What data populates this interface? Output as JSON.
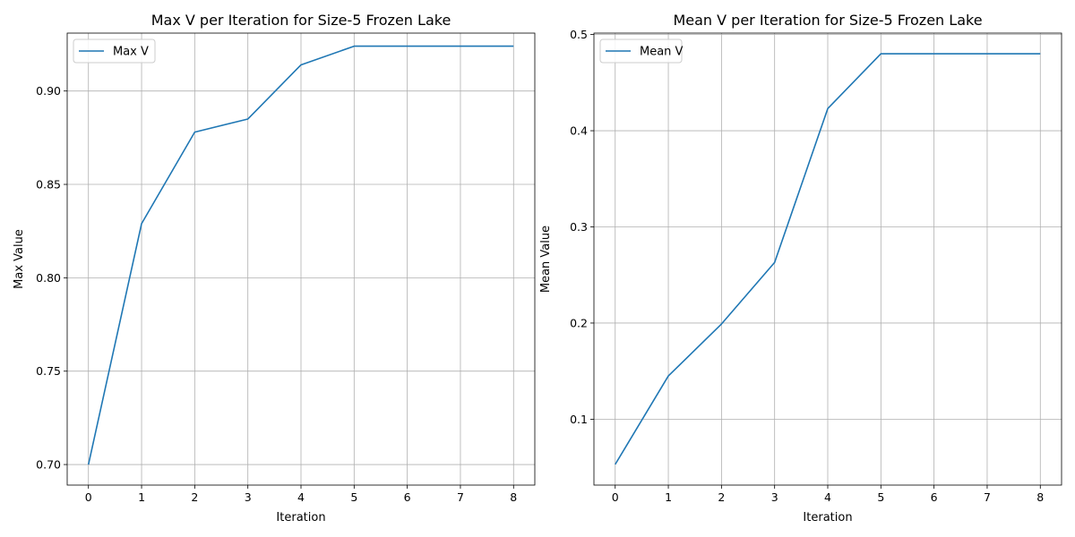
{
  "chart_data": [
    {
      "type": "line",
      "title": "Max V per Iteration for Size-5 Frozen Lake",
      "xlabel": "Iteration",
      "ylabel": "Max Value",
      "x": [
        0,
        1,
        2,
        3,
        4,
        5,
        6,
        7,
        8
      ],
      "series": [
        {
          "name": "Max V",
          "values": [
            0.7,
            0.829,
            0.878,
            0.885,
            0.914,
            0.924,
            0.924,
            0.924,
            0.924
          ]
        }
      ],
      "xlim": [
        -0.4,
        8.4
      ],
      "ylim": [
        0.689,
        0.931
      ],
      "xticks": [
        0,
        1,
        2,
        3,
        4,
        5,
        6,
        7,
        8
      ],
      "yticks": [
        0.7,
        0.75,
        0.8,
        0.85,
        0.9
      ],
      "ytick_labels": [
        "0.70",
        "0.75",
        "0.80",
        "0.85",
        "0.90"
      ],
      "grid": true,
      "legend": "top-left",
      "color": "#1f77b4"
    },
    {
      "type": "line",
      "title": "Mean V per Iteration for Size-5 Frozen Lake",
      "xlabel": "Iteration",
      "ylabel": "Mean Value",
      "x": [
        0,
        1,
        2,
        3,
        4,
        5,
        6,
        7,
        8
      ],
      "series": [
        {
          "name": "Mean V",
          "values": [
            0.053,
            0.145,
            0.199,
            0.263,
            0.423,
            0.48,
            0.48,
            0.48,
            0.48
          ]
        }
      ],
      "xlim": [
        -0.4,
        8.4
      ],
      "ylim": [
        0.0315,
        0.5015
      ],
      "xticks": [
        0,
        1,
        2,
        3,
        4,
        5,
        6,
        7,
        8
      ],
      "yticks": [
        0.1,
        0.2,
        0.3,
        0.4,
        0.5
      ],
      "ytick_labels": [
        "0.1",
        "0.2",
        "0.3",
        "0.4",
        "0.5"
      ],
      "grid": true,
      "legend": "top-left",
      "color": "#1f77b4"
    }
  ]
}
